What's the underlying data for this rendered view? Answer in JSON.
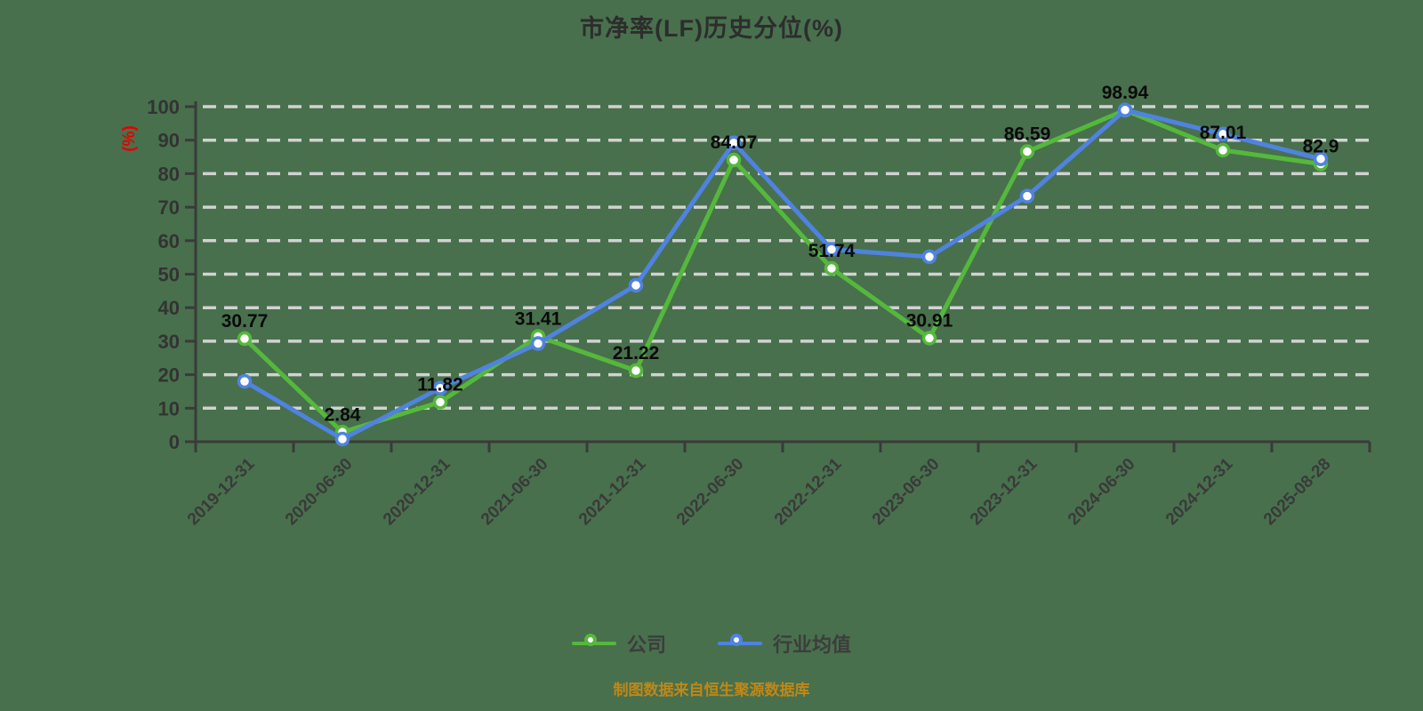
{
  "title": "市净率(LF)历史分位(%)",
  "footer": "制图数据来自恒生聚源数据库",
  "colors": {
    "background": "#48704d",
    "title": "#2d2d2d",
    "grid": "#d2d2d2",
    "axis": "#3a3a3a",
    "tick_label": "#333333",
    "x_label": "#3a3a3a",
    "data_label": "#0a0a0a",
    "y_unit_label": "#e60000",
    "marker_fill": "#ffffff",
    "legend_label": "#3d3d3d",
    "footer": "#bf8818",
    "company_line": "#55b83c",
    "industry_line": "#5082e1"
  },
  "chart_data": {
    "type": "line",
    "title": "市净率(LF)历史分位(%)",
    "ylabel": "(%)",
    "xlabel": "",
    "ylim": [
      0,
      100
    ],
    "ytick_step": 10,
    "grid": "horizontal-dashed-white",
    "legend_position": "bottom-center",
    "x": [
      "2019-12-31",
      "2020-06-30",
      "2020-12-31",
      "2021-06-30",
      "2021-12-31",
      "2022-06-30",
      "2022-12-31",
      "2023-06-30",
      "2023-12-31",
      "2024-06-30",
      "2024-12-31",
      "2025-08-28"
    ],
    "series": [
      {
        "name": "公司",
        "color": "#55b83c",
        "values": [
          30.77,
          2.84,
          11.82,
          31.41,
          21.22,
          84.07,
          51.74,
          30.91,
          86.59,
          98.94,
          87.01,
          82.9
        ],
        "labels": [
          "30.77",
          "2.84",
          "11.82",
          "31.41",
          "21.22",
          "84.07",
          "51.74",
          "30.91",
          "86.59",
          "98.94",
          "87.01",
          "82.9"
        ],
        "show_labels": true
      },
      {
        "name": "行业均值",
        "color": "#5082e1",
        "values": [
          18,
          0.8,
          16,
          29.3,
          46.7,
          89.2,
          57.4,
          55.2,
          73.3,
          99,
          91.8,
          84.4
        ],
        "labels": [],
        "show_labels": false
      }
    ]
  }
}
